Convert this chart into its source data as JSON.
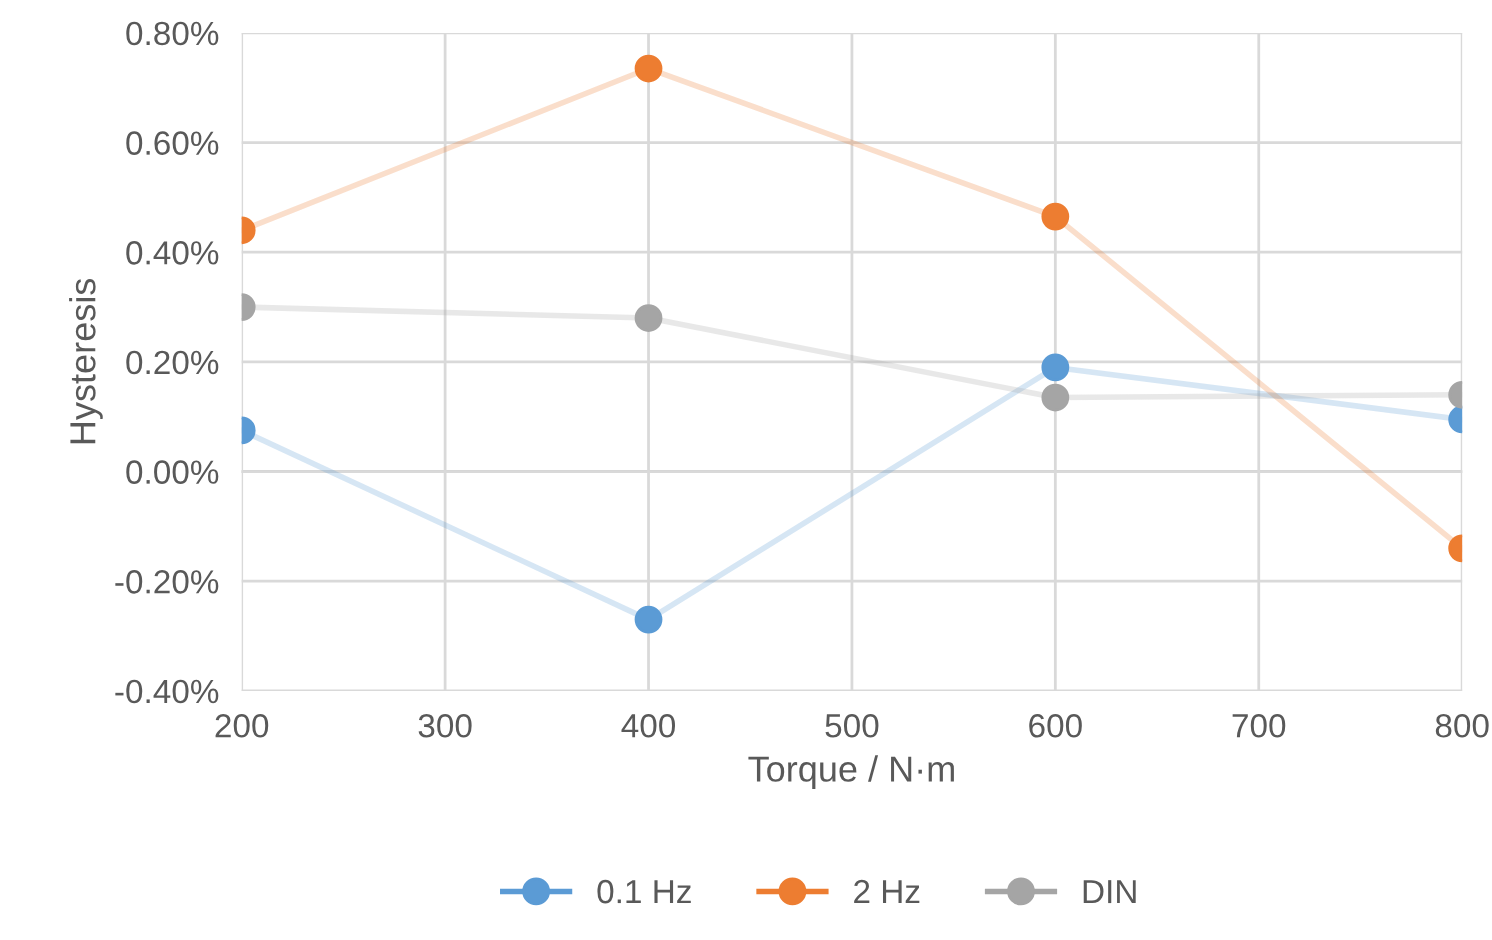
{
  "chart_data": {
    "type": "line",
    "xlabel": "Torque / N·m",
    "ylabel": "Hysteresis",
    "x": [
      200,
      400,
      600,
      800
    ],
    "series": [
      {
        "name": "0.1 Hz",
        "color": "#5b9bd5",
        "values": [
          0.075,
          -0.27,
          0.19,
          0.095
        ]
      },
      {
        "name": "2 Hz",
        "color": "#ed7d31",
        "values": [
          0.44,
          0.735,
          0.465,
          -0.14
        ]
      },
      {
        "name": "DIN",
        "color": "#a5a5a5",
        "values": [
          0.3,
          0.28,
          0.135,
          0.14
        ]
      }
    ],
    "xlim": [
      200,
      800
    ],
    "xticks": [
      200,
      300,
      400,
      500,
      600,
      700,
      800
    ],
    "ylim": [
      -0.4,
      0.8
    ],
    "yticks": [
      {
        "value": -0.4,
        "label": "-0.40%"
      },
      {
        "value": -0.2,
        "label": "-0.20%"
      },
      {
        "value": 0,
        "label": "0.00%"
      },
      {
        "value": 0.2,
        "label": "0.20%"
      },
      {
        "value": 0.4,
        "label": "0.40%"
      },
      {
        "value": 0.6,
        "label": "0.60%"
      },
      {
        "value": 0.8,
        "label": "0.80%"
      }
    ],
    "grid": true,
    "legend": "bottom",
    "marker": "circle",
    "line_style": "solid"
  }
}
